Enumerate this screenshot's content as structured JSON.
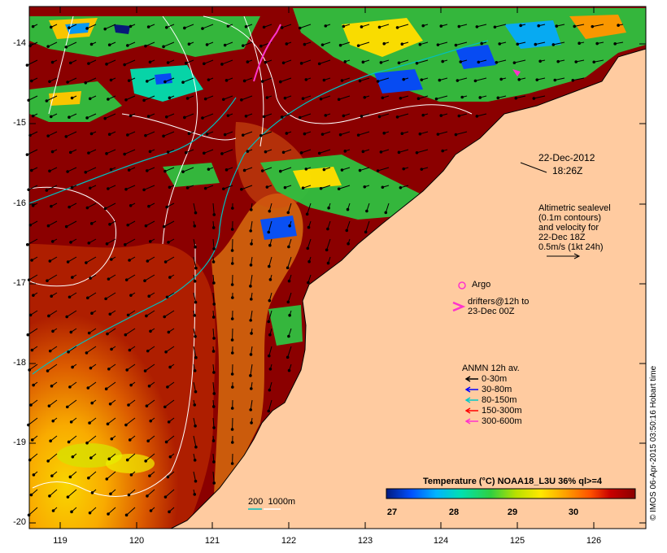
{
  "axes": {
    "lat_ticks": [
      "-14",
      "-15",
      "-16",
      "-17",
      "-18",
      "-19",
      "-20"
    ],
    "lon_ticks": [
      "119",
      "120",
      "121",
      "122",
      "123",
      "124",
      "125",
      "126"
    ]
  },
  "timestamp": {
    "date": "22-Dec-2012",
    "time": "18:26Z"
  },
  "altimetry_note": {
    "lines": [
      "Altimetric sealevel",
      "(0.1m contours)",
      "and velocity for",
      "22-Dec 18Z",
      "0.5m/s (1kt 24h)"
    ]
  },
  "markers": {
    "argo_label": "Argo",
    "drifters_line1": "drifters@12h to",
    "drifters_line2": "23-Dec 00Z"
  },
  "anmn_legend": {
    "title": "ANMN 12h av.",
    "items": [
      {
        "label": "0-30m",
        "color": "#000000"
      },
      {
        "label": "30-80m",
        "color": "#0000ff"
      },
      {
        "label": "80-150m",
        "color": "#00c8c8"
      },
      {
        "label": "150-300m",
        "color": "#ff0000"
      },
      {
        "label": "300-600m",
        "color": "#ff33cc"
      }
    ]
  },
  "depth_legend": {
    "label": "200  1000m",
    "color_200": "#00c0c0",
    "color_1000": "#ffffff"
  },
  "colorbar": {
    "title": "Temperature (°C) NOAA18_L3U 36% ql>=4",
    "ticks": [
      "27",
      "28",
      "29",
      "30"
    ],
    "colors": [
      "#001a80",
      "#0050ff",
      "#00b4ff",
      "#00e0b0",
      "#30d040",
      "#b8e000",
      "#ffe800",
      "#ffa000",
      "#ff5000",
      "#c80000",
      "#8b0000"
    ]
  },
  "credit": "© IMOS 06-Apr-2015 03:50:16 Hobart time",
  "colors": {
    "land": "#ffcba0",
    "sst_warm": "#8b0000",
    "frame": "#000000"
  }
}
